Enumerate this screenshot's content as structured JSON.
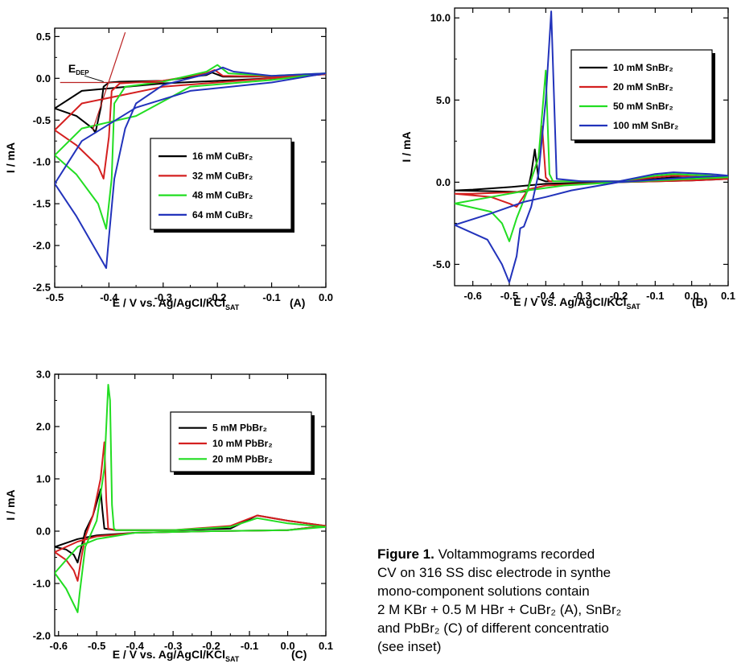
{
  "figure": {
    "caption_bold": "Figure 1.",
    "caption_line1": " Voltammograms recorded",
    "caption_line2": "CV on 316 SS disc electrode in synthe",
    "caption_line3": "mono-component  solutions  contain",
    "caption_line4": "2 M KBr + 0.5 M HBr + CuBr₂ (A), SnBr₂",
    "caption_line5": "and PbBr₂ (C) of different concentratio",
    "caption_line6": "(see inset)"
  },
  "chart_data": [
    {
      "type": "line",
      "panel_label": "(A)",
      "xlabel_main": "E   /   V vs. Ag/AgCl/KCl",
      "xlabel_sub": "SAT",
      "ylabel": "I  /  mA",
      "xlim": [
        -0.5,
        0.0
      ],
      "ylim": [
        -2.5,
        0.6
      ],
      "xticks": [
        -0.5,
        -0.4,
        -0.3,
        -0.2,
        -0.1,
        0.0
      ],
      "xtick_labels": [
        "-0.5",
        "-0.4",
        "-0.3",
        "-0.2",
        "-0.1",
        "0.0"
      ],
      "yticks": [
        -2.5,
        -2.0,
        -1.5,
        -1.0,
        -0.5,
        0.0,
        0.5
      ],
      "ytick_labels": [
        "-2.5",
        "-2.0",
        "-1.5",
        "-1.0",
        "-0.5",
        "0.0",
        "0.5"
      ],
      "annotation": {
        "text": "E",
        "sub": "DEP"
      },
      "series": [
        {
          "name": "16 mM CuBr₂",
          "color": "#000000",
          "x": [
            -0.5,
            -0.46,
            -0.43,
            -0.425,
            -0.415,
            -0.41,
            -0.4,
            -0.38,
            -0.3,
            -0.22,
            -0.21,
            -0.19,
            -0.1,
            0.0,
            -0.1,
            -0.3,
            -0.45,
            -0.5
          ],
          "y": [
            -0.36,
            -0.45,
            -0.6,
            -0.65,
            -0.35,
            -0.1,
            -0.05,
            -0.04,
            -0.03,
            0.04,
            0.07,
            0.02,
            0.02,
            0.05,
            0.0,
            -0.06,
            -0.15,
            -0.36
          ]
        },
        {
          "name": "32 mM CuBr₂",
          "color": "#d42020",
          "x": [
            -0.5,
            -0.46,
            -0.42,
            -0.41,
            -0.4,
            -0.395,
            -0.38,
            -0.3,
            -0.22,
            -0.205,
            -0.19,
            -0.1,
            0.0,
            -0.1,
            -0.3,
            -0.45,
            -0.5
          ],
          "y": [
            -0.62,
            -0.8,
            -1.05,
            -1.2,
            -0.7,
            -0.15,
            -0.06,
            -0.03,
            0.06,
            0.1,
            0.03,
            0.02,
            0.05,
            0.0,
            -0.1,
            -0.3,
            -0.62
          ]
        },
        {
          "name": "48 mM CuBr₂",
          "color": "#22dd22",
          "x": [
            -0.5,
            -0.46,
            -0.42,
            -0.405,
            -0.395,
            -0.39,
            -0.37,
            -0.3,
            -0.22,
            -0.2,
            -0.18,
            -0.1,
            0.0,
            -0.1,
            -0.25,
            -0.35,
            -0.45,
            -0.5
          ],
          "y": [
            -0.92,
            -1.15,
            -1.5,
            -1.8,
            -1.2,
            -0.3,
            -0.1,
            -0.04,
            0.08,
            0.16,
            0.06,
            0.03,
            0.06,
            -0.02,
            -0.1,
            -0.45,
            -0.6,
            -0.92
          ]
        },
        {
          "name": "64 mM CuBr₂",
          "color": "#2233bb",
          "x": [
            -0.5,
            -0.46,
            -0.42,
            -0.405,
            -0.4,
            -0.39,
            -0.37,
            -0.35,
            -0.3,
            -0.22,
            -0.19,
            -0.17,
            -0.1,
            0.0,
            -0.1,
            -0.25,
            -0.35,
            -0.45,
            -0.5
          ],
          "y": [
            -1.26,
            -1.65,
            -2.1,
            -2.27,
            -1.9,
            -1.2,
            -0.6,
            -0.3,
            -0.08,
            0.05,
            0.13,
            0.08,
            0.03,
            0.06,
            -0.05,
            -0.15,
            -0.35,
            -0.75,
            -1.26
          ]
        }
      ]
    },
    {
      "type": "line",
      "panel_label": "(B)",
      "xlabel_main": "E   /   V vs. Ag/AgCl/KCl",
      "xlabel_sub": "SAT",
      "ylabel": "I  /  mA",
      "xlim": [
        -0.65,
        0.1
      ],
      "ylim": [
        -6.3,
        10.6
      ],
      "xticks": [
        -0.6,
        -0.5,
        -0.4,
        -0.3,
        -0.2,
        -0.1,
        0.0,
        0.1
      ],
      "xtick_labels": [
        "-0.6",
        "-0.5",
        "-0.4",
        "-0.3",
        "-0.2",
        "-0.1",
        "0.0",
        "0.1"
      ],
      "yticks": [
        -5.0,
        0.0,
        5.0,
        10.0
      ],
      "ytick_labels": [
        "-5.0",
        "0.0",
        "5.0",
        "10.0"
      ],
      "series": [
        {
          "name": "10 mM SnBr₂",
          "color": "#000000",
          "x": [
            -0.65,
            -0.55,
            -0.47,
            -0.45,
            -0.44,
            -0.43,
            -0.42,
            -0.4,
            -0.3,
            -0.2,
            -0.1,
            -0.05,
            0.05,
            0.1,
            0.0,
            -0.2,
            -0.4,
            -0.5,
            -0.6,
            -0.65
          ],
          "y": [
            -0.5,
            -0.55,
            -0.6,
            -0.55,
            0.5,
            2.0,
            0.2,
            0.05,
            0.05,
            0.05,
            0.2,
            0.3,
            0.2,
            0.2,
            0.1,
            0.0,
            -0.1,
            -0.3,
            -0.45,
            -0.5
          ]
        },
        {
          "name": "20 mM SnBr₂",
          "color": "#d42020",
          "x": [
            -0.65,
            -0.55,
            -0.5,
            -0.48,
            -0.45,
            -0.42,
            -0.41,
            -0.4,
            -0.39,
            -0.3,
            -0.2,
            -0.1,
            -0.05,
            0.05,
            0.1,
            0.0,
            -0.2,
            -0.4,
            -0.48,
            -0.6,
            -0.65
          ],
          "y": [
            -0.7,
            -0.9,
            -1.3,
            -1.5,
            -0.5,
            1.5,
            3.4,
            0.3,
            0.05,
            0.05,
            0.05,
            0.3,
            0.4,
            0.3,
            0.2,
            0.1,
            0.0,
            -0.2,
            -0.6,
            -0.7,
            -0.7
          ]
        },
        {
          "name": "50 mM SnBr₂",
          "color": "#22dd22",
          "x": [
            -0.65,
            -0.55,
            -0.52,
            -0.5,
            -0.48,
            -0.45,
            -0.42,
            -0.4,
            -0.39,
            -0.38,
            -0.3,
            -0.2,
            -0.1,
            -0.05,
            0.05,
            0.1,
            0.0,
            -0.2,
            -0.35,
            -0.45,
            -0.55,
            -0.65
          ],
          "y": [
            -1.3,
            -1.8,
            -2.5,
            -3.6,
            -2.2,
            -0.5,
            1.5,
            6.8,
            0.5,
            0.05,
            0.05,
            0.05,
            0.4,
            0.5,
            0.4,
            0.3,
            0.2,
            0.0,
            -0.2,
            -0.5,
            -0.9,
            -1.3
          ]
        },
        {
          "name": "100 mM SnBr₂",
          "color": "#2233bb",
          "x": [
            -0.65,
            -0.56,
            -0.52,
            -0.5,
            -0.48,
            -0.47,
            -0.46,
            -0.44,
            -0.42,
            -0.4,
            -0.385,
            -0.37,
            -0.3,
            -0.2,
            -0.1,
            -0.05,
            0.05,
            0.1,
            0.0,
            -0.2,
            -0.33,
            -0.4,
            -0.46,
            -0.55,
            -0.65
          ],
          "y": [
            -2.6,
            -3.5,
            -5.0,
            -6.1,
            -4.5,
            -2.8,
            -2.7,
            -1.5,
            0.5,
            5.0,
            10.4,
            0.2,
            0.05,
            0.05,
            0.5,
            0.6,
            0.5,
            0.4,
            0.3,
            0.0,
            -0.5,
            -0.9,
            -1.2,
            -1.9,
            -2.6
          ]
        }
      ]
    },
    {
      "type": "line",
      "panel_label": "(C)",
      "xlabel_main": "E   /   V vs. Ag/AgCl/KCl",
      "xlabel_sub": "SAT",
      "ylabel": "I  /  mA",
      "xlim": [
        -0.61,
        0.1
      ],
      "ylim": [
        -2.0,
        3.0
      ],
      "xticks": [
        -0.6,
        -0.5,
        -0.4,
        -0.3,
        -0.2,
        -0.1,
        0.0,
        0.1
      ],
      "xtick_labels": [
        "-0.6",
        "-0.5",
        "-0.4",
        "-0.3",
        "-0.2",
        "-0.1",
        "0.0",
        "0.1"
      ],
      "yticks": [
        -2.0,
        -1.0,
        0.0,
        1.0,
        2.0,
        3.0
      ],
      "ytick_labels": [
        "-2.0",
        "-1.0",
        "0.0",
        "1.0",
        "2.0",
        "3.0"
      ],
      "series": [
        {
          "name": "5 mM PbBr₂",
          "color": "#000000",
          "x": [
            -0.61,
            -0.58,
            -0.56,
            -0.55,
            -0.54,
            -0.53,
            -0.51,
            -0.49,
            -0.485,
            -0.48,
            -0.45,
            -0.3,
            -0.15,
            -0.08,
            0.0,
            0.1,
            0.0,
            -0.2,
            -0.4,
            -0.5,
            -0.55,
            -0.61
          ],
          "y": [
            -0.3,
            -0.35,
            -0.45,
            -0.6,
            -0.3,
            0.0,
            0.3,
            0.8,
            0.4,
            0.05,
            0.02,
            0.02,
            0.05,
            0.3,
            0.2,
            0.1,
            0.02,
            0.0,
            -0.03,
            -0.08,
            -0.15,
            -0.3
          ]
        },
        {
          "name": "10 mM PbBr₂",
          "color": "#d42020",
          "x": [
            -0.61,
            -0.58,
            -0.56,
            -0.55,
            -0.54,
            -0.53,
            -0.51,
            -0.49,
            -0.48,
            -0.475,
            -0.47,
            -0.45,
            -0.3,
            -0.15,
            -0.08,
            0.0,
            0.1,
            0.0,
            -0.2,
            -0.4,
            -0.5,
            -0.55,
            -0.61
          ],
          "y": [
            -0.4,
            -0.55,
            -0.75,
            -0.95,
            -0.5,
            -0.1,
            0.3,
            1.0,
            1.7,
            0.6,
            0.05,
            0.02,
            0.02,
            0.1,
            0.3,
            0.2,
            0.1,
            0.02,
            0.0,
            -0.03,
            -0.1,
            -0.2,
            -0.4
          ]
        },
        {
          "name": "20 mM PbBr₂",
          "color": "#22dd22",
          "x": [
            -0.61,
            -0.58,
            -0.56,
            -0.55,
            -0.545,
            -0.53,
            -0.5,
            -0.48,
            -0.47,
            -0.465,
            -0.46,
            -0.455,
            -0.45,
            -0.3,
            -0.15,
            -0.08,
            0.0,
            0.1,
            0.0,
            -0.2,
            -0.4,
            -0.5,
            -0.55,
            -0.61
          ],
          "y": [
            -0.8,
            -1.1,
            -1.4,
            -1.55,
            -1.2,
            -0.3,
            0.2,
            1.2,
            2.8,
            2.5,
            0.5,
            0.05,
            0.02,
            0.02,
            0.08,
            0.25,
            0.15,
            0.08,
            0.02,
            0.0,
            -0.03,
            -0.15,
            -0.3,
            -0.8
          ]
        }
      ]
    }
  ]
}
